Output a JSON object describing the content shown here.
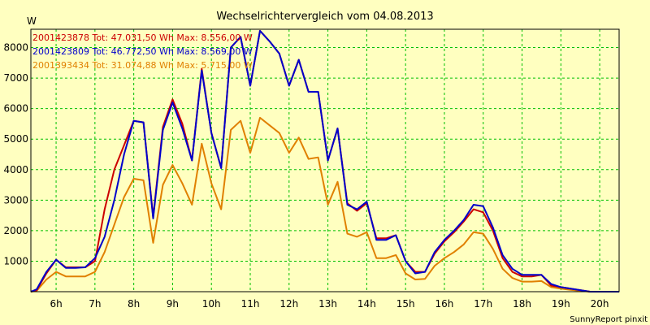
{
  "chart_data": {
    "type": "line",
    "title": "Wechselrichtervergleich vom 04.08.2013",
    "ylabel": "W",
    "xlabel": "",
    "ylim": [
      0,
      8600
    ],
    "xlim": [
      5.35,
      20.5
    ],
    "y_ticks": [
      {
        "value": 1000,
        "label": "1000"
      },
      {
        "value": 2000,
        "label": "2000"
      },
      {
        "value": 3000,
        "label": "3000"
      },
      {
        "value": 4000,
        "label": "4000"
      },
      {
        "value": 5000,
        "label": "5000"
      },
      {
        "value": 6000,
        "label": "6000"
      },
      {
        "value": 7000,
        "label": "7000"
      },
      {
        "value": 8000,
        "label": "8000"
      }
    ],
    "x_ticks": [
      {
        "value": 6,
        "label": "6h"
      },
      {
        "value": 7,
        "label": "7h"
      },
      {
        "value": 8,
        "label": "8h"
      },
      {
        "value": 9,
        "label": "9h"
      },
      {
        "value": 10,
        "label": "10h"
      },
      {
        "value": 11,
        "label": "11h"
      },
      {
        "value": 12,
        "label": "12h"
      },
      {
        "value": 13,
        "label": "13h"
      },
      {
        "value": 14,
        "label": "14h"
      },
      {
        "value": 15,
        "label": "15h"
      },
      {
        "value": 16,
        "label": "16h"
      },
      {
        "value": 17,
        "label": "17h"
      },
      {
        "value": 18,
        "label": "18h"
      },
      {
        "value": 19,
        "label": "19h"
      },
      {
        "value": 20,
        "label": "20h"
      }
    ],
    "grid": true,
    "legend_position": "top-left",
    "x": [
      5.35,
      5.5,
      5.75,
      6.0,
      6.25,
      6.5,
      6.75,
      7.0,
      7.25,
      7.5,
      7.75,
      8.0,
      8.25,
      8.5,
      8.75,
      9.0,
      9.25,
      9.5,
      9.75,
      10.0,
      10.25,
      10.5,
      10.75,
      11.0,
      11.25,
      11.5,
      11.75,
      12.0,
      12.25,
      12.5,
      12.75,
      13.0,
      13.25,
      13.5,
      13.75,
      14.0,
      14.25,
      14.5,
      14.75,
      15.0,
      15.25,
      15.5,
      15.75,
      16.0,
      16.25,
      16.5,
      16.75,
      17.0,
      17.25,
      17.5,
      17.75,
      18.0,
      18.25,
      18.5,
      18.75,
      19.0,
      19.25,
      19.5,
      19.75,
      20.0,
      20.25,
      20.5
    ],
    "series": [
      {
        "name": "2001423878",
        "legend": "2001423878 Tot: 47.031,50 Wh Max: 8.556,00 W",
        "color": "#cc0000",
        "values": [
          0,
          50,
          600,
          1050,
          800,
          800,
          800,
          1000,
          2700,
          4000,
          4800,
          5600,
          5550,
          2450,
          5400,
          6300,
          5500,
          4300,
          7300,
          5200,
          4050,
          8000,
          8350,
          6750,
          8550,
          8200,
          7800,
          6750,
          7600,
          6550,
          6550,
          4300,
          5350,
          2900,
          2650,
          2900,
          1750,
          1750,
          1850,
          1000,
          650,
          650,
          1250,
          1650,
          1950,
          2300,
          2700,
          2600,
          2000,
          1100,
          650,
          500,
          500,
          550,
          200,
          150,
          100,
          50,
          0,
          0,
          0,
          0
        ]
      },
      {
        "name": "2001423809",
        "legend": "2001423809 Tot: 46.772,50 Wh Max: 8.569,00 W",
        "color": "#0000cc",
        "values": [
          0,
          80,
          650,
          1050,
          780,
          780,
          800,
          1100,
          1800,
          3000,
          4500,
          5600,
          5550,
          2400,
          5300,
          6200,
          5350,
          4300,
          7250,
          5200,
          4050,
          8000,
          8350,
          6750,
          8550,
          8200,
          7800,
          6750,
          7600,
          6550,
          6550,
          4300,
          5350,
          2850,
          2700,
          2950,
          1700,
          1700,
          1850,
          1000,
          600,
          650,
          1300,
          1700,
          2000,
          2350,
          2850,
          2800,
          2100,
          1200,
          750,
          550,
          550,
          550,
          250,
          150,
          100,
          50,
          0,
          0,
          0,
          0
        ]
      },
      {
        "name": "2001393434",
        "legend": "2001393434 Tot: 31.074,88 Wh Max: 5.715,00 W",
        "color": "#e08000",
        "values": [
          0,
          30,
          400,
          650,
          500,
          500,
          500,
          650,
          1300,
          2200,
          3100,
          3700,
          3650,
          1600,
          3500,
          4150,
          3550,
          2850,
          4850,
          3550,
          2700,
          5300,
          5600,
          4550,
          5700,
          5450,
          5200,
          4550,
          5050,
          4350,
          4400,
          2850,
          3600,
          1900,
          1800,
          1950,
          1100,
          1100,
          1200,
          600,
          400,
          420,
          850,
          1100,
          1300,
          1550,
          1950,
          1900,
          1400,
          750,
          450,
          330,
          330,
          350,
          150,
          100,
          60,
          30,
          0,
          0,
          0,
          0
        ]
      }
    ],
    "credit": "SunnyReport pinxit"
  }
}
